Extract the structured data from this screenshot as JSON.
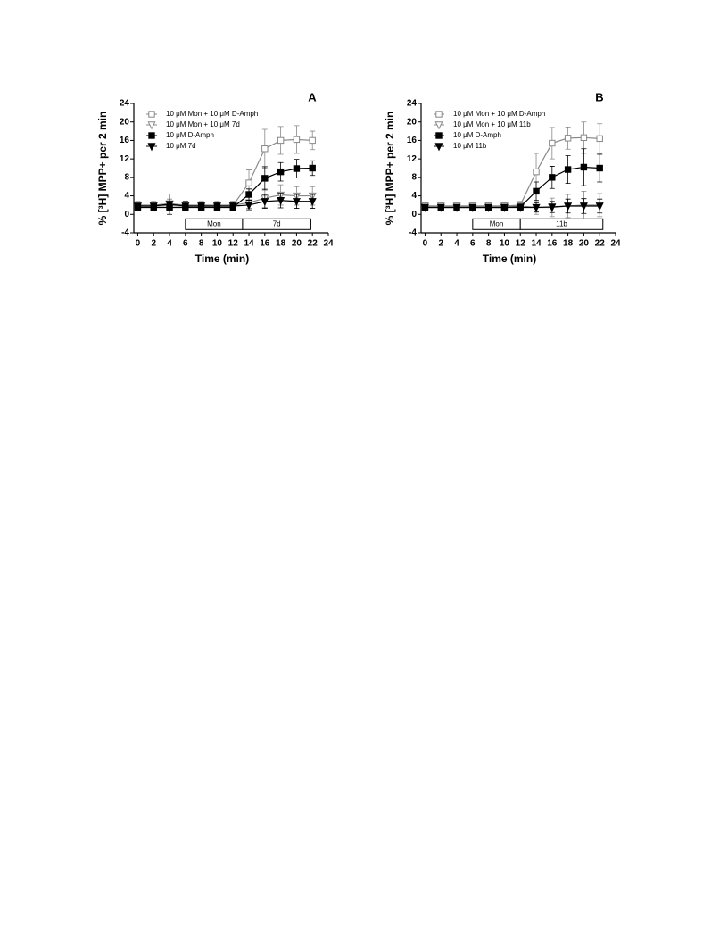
{
  "chart_data": [
    {
      "type": "line",
      "panel": "A",
      "x_label": "Time (min)",
      "y_label": "% [³H] MPP+ per 2 min",
      "x": [
        0,
        2,
        4,
        6,
        8,
        10,
        12,
        14,
        16,
        18,
        20,
        22
      ],
      "xlim": [
        -0.5,
        24
      ],
      "xticks": [
        0,
        2,
        4,
        6,
        8,
        10,
        12,
        14,
        16,
        18,
        20,
        22,
        24
      ],
      "ylim": [
        -4,
        24
      ],
      "yticks": [
        -4,
        0,
        4,
        8,
        12,
        16,
        20,
        24
      ],
      "treatment_bars": [
        {
          "label": "Mon",
          "x": [
            6,
            13.2
          ]
        },
        {
          "label": "7d",
          "x": [
            13.2,
            21.8
          ]
        }
      ],
      "series": [
        {
          "name": "10 μM Mon + 10 μM D-Amph",
          "color": "#888888",
          "marker": "open-square",
          "values": [
            1.8,
            1.8,
            1.9,
            1.8,
            1.8,
            1.8,
            1.9,
            6.8,
            14.2,
            16,
            16.2,
            16
          ],
          "errors": [
            0.8,
            0.8,
            0.9,
            0.8,
            0.8,
            0.8,
            0.9,
            2.8,
            4.2,
            3.0,
            3.0,
            2.0
          ]
        },
        {
          "name": "10 μM Mon + 10 μM 7d",
          "color": "#888888",
          "marker": "open-triangle",
          "values": [
            2.0,
            2.0,
            2.3,
            2.0,
            2.0,
            2.0,
            2.0,
            2.5,
            3.5,
            4.2,
            4.0,
            4.0
          ],
          "errors": [
            0.8,
            0.8,
            1.0,
            0.8,
            0.8,
            0.8,
            0.8,
            1.2,
            2.0,
            2.2,
            2.0,
            2.0
          ]
        },
        {
          "name": "10 μM D-Amph",
          "color": "#000000",
          "marker": "filled-square",
          "values": [
            1.5,
            1.5,
            1.5,
            1.5,
            1.5,
            1.5,
            1.5,
            4.3,
            7.8,
            9.2,
            9.9,
            10
          ],
          "errors": [
            0.6,
            0.6,
            0.6,
            0.6,
            0.6,
            0.6,
            0.6,
            1.2,
            2.5,
            2.0,
            2.0,
            1.6
          ]
        },
        {
          "name": "10 μM 7d",
          "color": "#000000",
          "marker": "filled-triangle",
          "values": [
            1.8,
            1.8,
            2.2,
            1.8,
            1.8,
            1.8,
            1.8,
            2.0,
            2.8,
            3.0,
            2.8,
            2.8
          ],
          "errors": [
            0.6,
            0.6,
            2.2,
            1.0,
            0.8,
            0.8,
            0.8,
            1.0,
            1.5,
            1.6,
            1.5,
            1.5
          ]
        }
      ]
    },
    {
      "type": "line",
      "panel": "B",
      "x_label": "Time (min)",
      "y_label": "% [³H] MPP+ per 2 min",
      "x": [
        0,
        2,
        4,
        6,
        8,
        10,
        12,
        14,
        16,
        18,
        20,
        22
      ],
      "xlim": [
        -0.5,
        24
      ],
      "xticks": [
        0,
        2,
        4,
        6,
        8,
        10,
        12,
        14,
        16,
        18,
        20,
        22,
        24
      ],
      "ylim": [
        -4,
        24
      ],
      "yticks": [
        -4,
        0,
        4,
        8,
        12,
        16,
        20,
        24
      ],
      "treatment_bars": [
        {
          "label": "Mon",
          "x": [
            6,
            12
          ]
        },
        {
          "label": "11b",
          "x": [
            12,
            22.4
          ]
        }
      ],
      "series": [
        {
          "name": "10 μM Mon + 10 μM D-Amph",
          "color": "#888888",
          "marker": "open-square",
          "values": [
            1.8,
            1.8,
            1.8,
            1.8,
            1.8,
            1.8,
            2.0,
            9.2,
            15.4,
            16.5,
            16.6,
            16.4
          ],
          "errors": [
            0.8,
            0.8,
            0.8,
            0.8,
            0.8,
            0.8,
            0.8,
            4.0,
            3.4,
            2.4,
            3.4,
            3.2
          ]
        },
        {
          "name": "10 μM Mon + 10 μM 11b",
          "color": "#888888",
          "marker": "open-triangle",
          "values": [
            1.8,
            1.8,
            1.8,
            1.8,
            1.8,
            1.8,
            1.8,
            1.5,
            1.5,
            1.8,
            2.0,
            2.0
          ],
          "errors": [
            0.8,
            0.8,
            0.8,
            0.8,
            0.8,
            0.8,
            0.8,
            1.5,
            2.0,
            2.5,
            3.0,
            2.5
          ]
        },
        {
          "name": "10 μM D-Amph",
          "color": "#000000",
          "marker": "filled-square",
          "values": [
            1.5,
            1.5,
            1.5,
            1.5,
            1.5,
            1.5,
            1.6,
            5,
            8,
            9.7,
            10.2,
            10
          ],
          "errors": [
            0.6,
            0.6,
            0.6,
            0.6,
            0.6,
            0.6,
            0.6,
            2.0,
            2.4,
            3.0,
            4.0,
            3.0
          ]
        },
        {
          "name": "10 μM 11b",
          "color": "#000000",
          "marker": "filled-triangle",
          "values": [
            1.5,
            1.5,
            1.5,
            1.5,
            1.5,
            1.5,
            1.5,
            1.5,
            1.6,
            1.8,
            1.8,
            1.8
          ],
          "errors": [
            0.6,
            0.6,
            0.6,
            0.6,
            0.6,
            0.6,
            0.6,
            1.0,
            1.2,
            1.5,
            1.6,
            1.5
          ]
        }
      ]
    }
  ]
}
